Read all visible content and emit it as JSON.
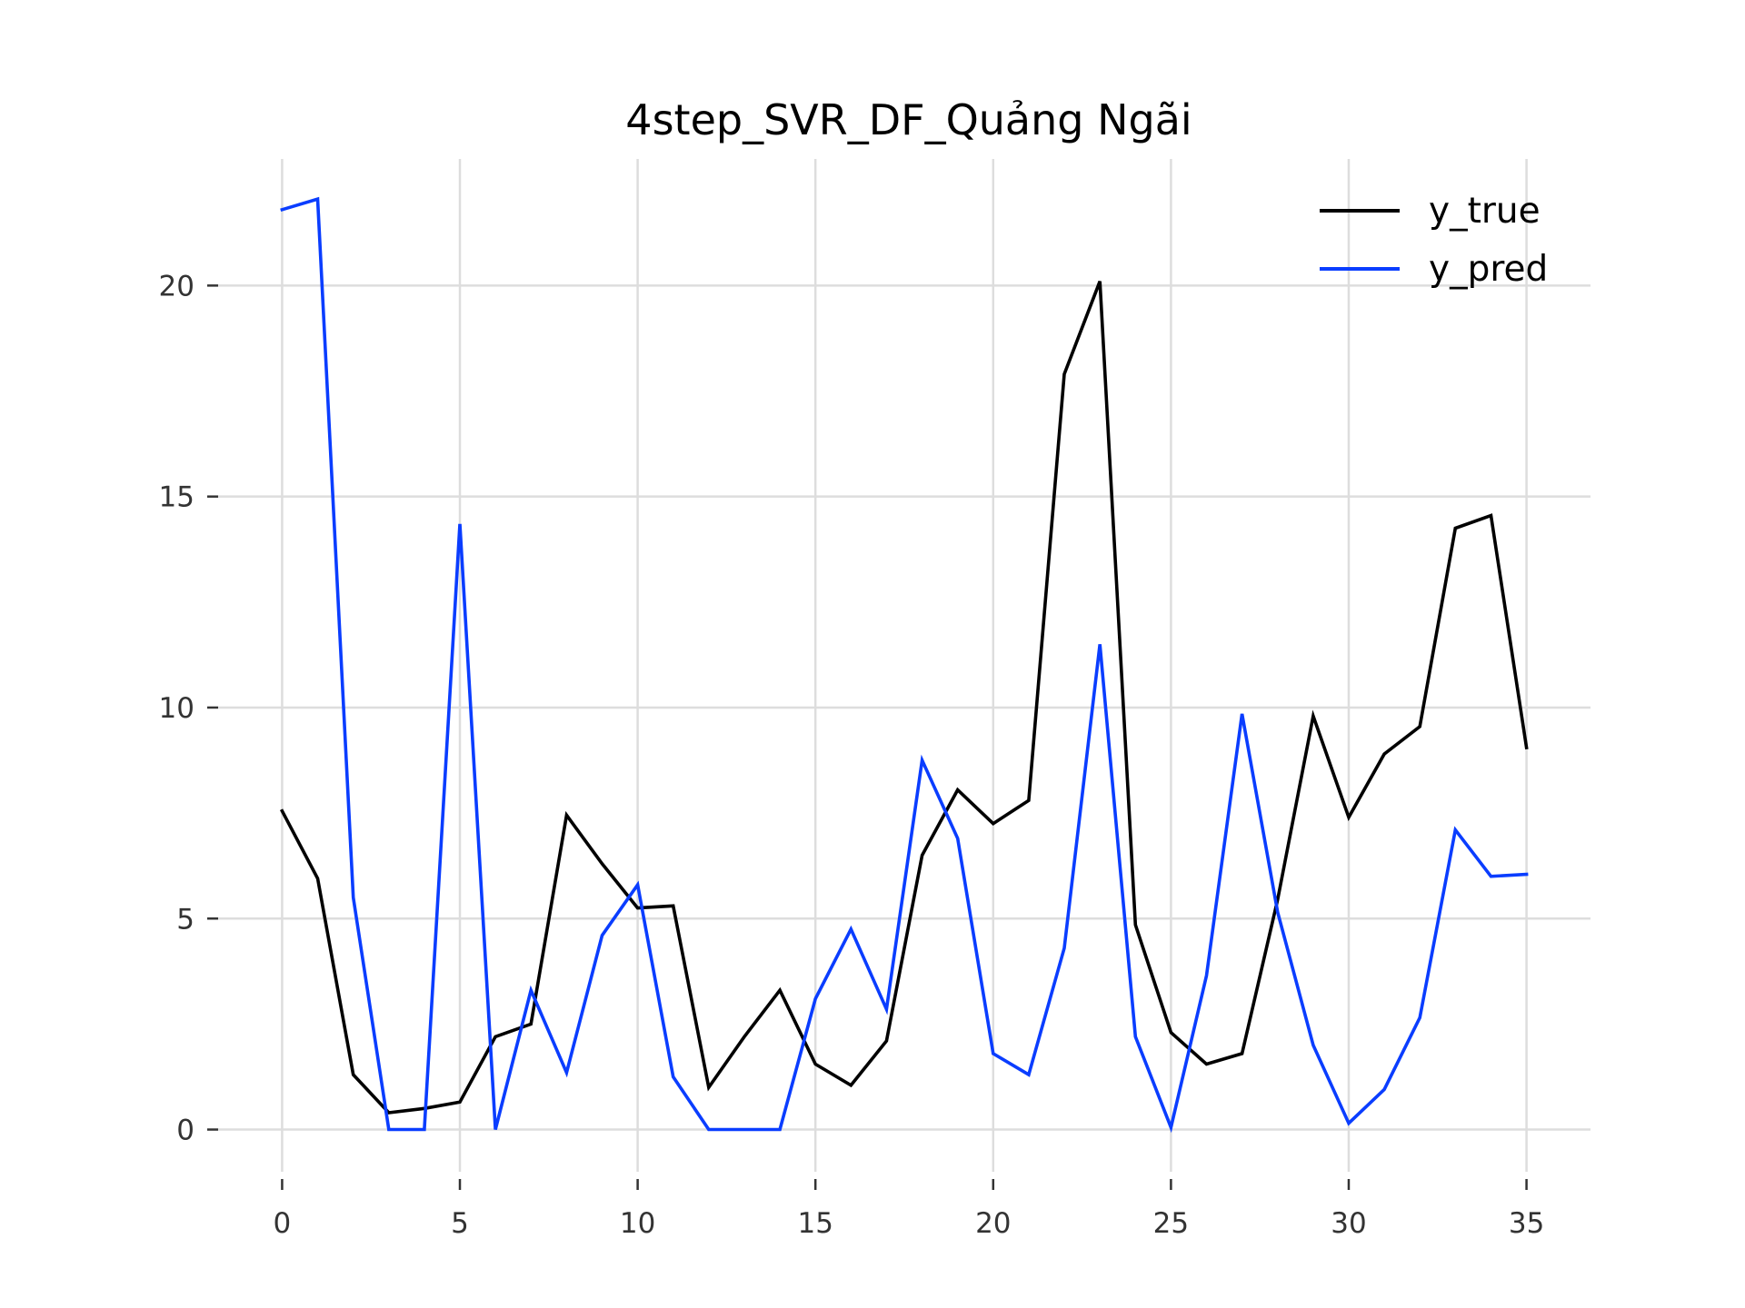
{
  "chart_data": {
    "type": "line",
    "title": "4step_SVR_DF_Quảng Ngãi",
    "xlabel": "",
    "ylabel": "",
    "xlim": [
      -1.8,
      36.8
    ],
    "ylim": [
      -1.0,
      23.0
    ],
    "xticks": [
      0,
      5,
      10,
      15,
      20,
      25,
      30,
      35
    ],
    "yticks": [
      0,
      5,
      10,
      15,
      20
    ],
    "grid": true,
    "legend": "top-right",
    "x": [
      0,
      1,
      2,
      3,
      4,
      5,
      6,
      7,
      8,
      9,
      10,
      11,
      12,
      13,
      14,
      15,
      16,
      17,
      18,
      19,
      20,
      21,
      22,
      23,
      24,
      25,
      26,
      27,
      28,
      29,
      30,
      31,
      32,
      33,
      34,
      35
    ],
    "series": [
      {
        "name": "y_true",
        "color": "#000000",
        "values": [
          7.55,
          5.95,
          1.3,
          0.4,
          0.5,
          0.65,
          2.2,
          2.5,
          7.45,
          6.3,
          5.25,
          5.3,
          1.0,
          2.2,
          3.3,
          1.55,
          1.05,
          2.1,
          6.5,
          8.05,
          7.25,
          7.8,
          17.9,
          20.1,
          4.85,
          2.3,
          1.55,
          1.8,
          5.45,
          9.8,
          7.4,
          8.9,
          9.55,
          14.25,
          14.55,
          9.05
        ]
      },
      {
        "name": "y_pred",
        "color": "#0a3dff",
        "values": [
          21.8,
          22.05,
          5.5,
          0.0,
          0.0,
          14.35,
          0.0,
          3.3,
          1.35,
          4.6,
          5.8,
          1.25,
          0.0,
          0.0,
          0.0,
          3.1,
          4.75,
          2.85,
          8.75,
          6.9,
          1.8,
          1.3,
          4.3,
          11.5,
          2.2,
          0.05,
          3.65,
          9.85,
          5.15,
          2.0,
          0.15,
          0.95,
          2.65,
          7.1,
          6.0,
          6.05
        ]
      }
    ]
  }
}
